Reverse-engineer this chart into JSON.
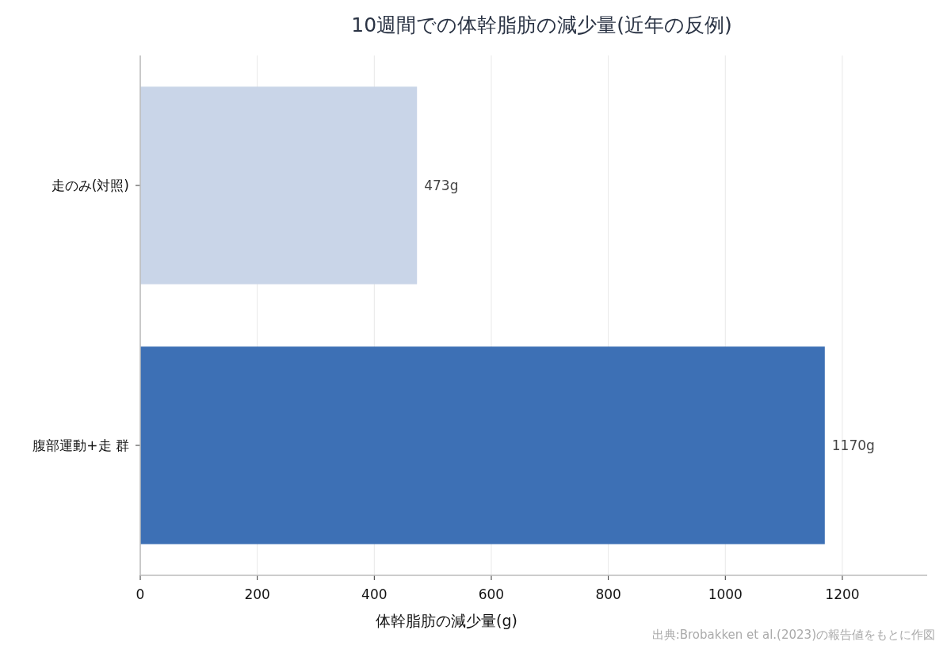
{
  "chart_data": {
    "type": "bar",
    "orientation": "horizontal",
    "title": "10週間での体幹脂肪の減少量(近年の反例)",
    "xlabel": "体幹脂肪の減少量(g)",
    "categories": [
      "走のみ(対照)",
      "腹部運動+走 群"
    ],
    "values": [
      473,
      1170
    ],
    "colors": [
      "#c9d5e8",
      "#3d70b5"
    ],
    "value_labels": [
      "473g",
      "1170g"
    ],
    "xlim": [
      0,
      1345
    ],
    "xticks": [
      0,
      200,
      400,
      600,
      800,
      1000,
      1200
    ],
    "grid": "x",
    "annotations": [
      "出典:Brobakken et al.(2023)の報告値をもとに作図"
    ]
  }
}
